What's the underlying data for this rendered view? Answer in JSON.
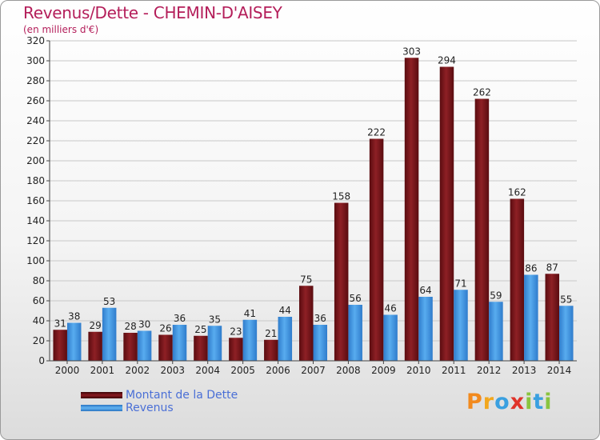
{
  "header": {
    "title": "Revenus/Dette - CHEMIN-D'AISEY",
    "subtitle": "(en milliers d'€)"
  },
  "colors": {
    "dette": "#7a1418",
    "revenus": "#3b8ee0"
  },
  "legend": {
    "items": [
      {
        "label": "Montant de la Dette",
        "color": "#6b0f14"
      },
      {
        "label": "Revenus",
        "color": "#3b8ee0"
      }
    ]
  },
  "logo": {
    "letters": [
      {
        "ch": "P",
        "color": "#f28a1e"
      },
      {
        "ch": "r",
        "color": "#f2a71e"
      },
      {
        "ch": "o",
        "color": "#3aa0e0"
      },
      {
        "ch": "x",
        "color": "#e0332a"
      },
      {
        "ch": "i",
        "color": "#8ac43f"
      },
      {
        "ch": "t",
        "color": "#3aa0e0"
      },
      {
        "ch": "i",
        "color": "#8ac43f"
      }
    ]
  },
  "chart_data": {
    "type": "bar",
    "categories": [
      "2000",
      "2001",
      "2002",
      "2003",
      "2004",
      "2005",
      "2006",
      "2007",
      "2008",
      "2009",
      "2010",
      "2011",
      "2012",
      "2013",
      "2014"
    ],
    "series": [
      {
        "name": "Montant de la Dette",
        "values": [
          31,
          29,
          28,
          26,
          25,
          23,
          21,
          75,
          158,
          222,
          303,
          294,
          262,
          162,
          87
        ]
      },
      {
        "name": "Revenus",
        "values": [
          38,
          53,
          30,
          36,
          35,
          41,
          44,
          36,
          56,
          46,
          64,
          71,
          59,
          86,
          55
        ]
      }
    ],
    "ylim": [
      0,
      320
    ],
    "yticks": [
      0,
      20,
      40,
      60,
      80,
      100,
      120,
      140,
      160,
      180,
      200,
      220,
      240,
      260,
      280,
      300,
      320
    ],
    "grid": true,
    "legend_position": "bottom-left"
  }
}
